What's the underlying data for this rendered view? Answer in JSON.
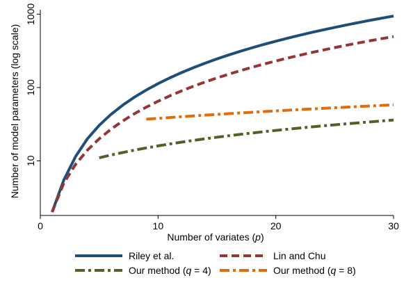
{
  "chart_data": {
    "type": "line",
    "title": "",
    "xlabel_parts": [
      "Number of variates (",
      "p",
      ")"
    ],
    "ylabel": "Number of model parameters (log scale)",
    "xlim": [
      0,
      30
    ],
    "ylim": [
      1.8,
      1150
    ],
    "y_scale": "log",
    "x_ticks": [
      0,
      10,
      20,
      30
    ],
    "y_ticks": [
      10,
      100,
      1000
    ],
    "grid": false,
    "legend_position": "bottom",
    "series": [
      {
        "name": "Riley et al.",
        "color": "#1f4e79",
        "dash": "solid",
        "x": [
          1,
          2,
          3,
          4,
          5,
          6,
          7,
          8,
          9,
          10,
          11,
          12,
          13,
          14,
          15,
          16,
          17,
          18,
          19,
          20,
          21,
          22,
          23,
          24,
          25,
          26,
          27,
          28,
          29,
          30
        ],
        "y": [
          2,
          5.5,
          11.5,
          20,
          30.5,
          43,
          57.5,
          74,
          92.5,
          113,
          135.5,
          160,
          186.5,
          215,
          245.5,
          278,
          312.5,
          349,
          387.5,
          428,
          470.5,
          515,
          561.5,
          610,
          660.5,
          713,
          767.5,
          824,
          882.5,
          943
        ]
      },
      {
        "name": "Lin and Chu",
        "color": "#943634",
        "dash": "dashed",
        "x": [
          1,
          2,
          3,
          4,
          5,
          6,
          7,
          8,
          9,
          10,
          11,
          12,
          13,
          14,
          15,
          16,
          17,
          18,
          19,
          20,
          21,
          22,
          23,
          24,
          25,
          26,
          27,
          28,
          29,
          30
        ],
        "y": [
          2,
          5,
          9,
          14,
          20,
          27,
          35,
          44,
          54,
          65,
          77,
          90,
          104,
          119,
          135,
          152,
          170,
          189,
          209,
          230,
          252,
          275,
          299,
          324,
          350,
          377,
          405,
          434,
          464,
          495
        ]
      },
      {
        "name_parts": [
          "Our method (",
          "q",
          " = 4)"
        ],
        "color": "#4f6228",
        "dash": "dashdot",
        "x": [
          5,
          6,
          7,
          8,
          9,
          10,
          11,
          12,
          13,
          14,
          15,
          16,
          17,
          18,
          19,
          20,
          21,
          22,
          23,
          24,
          25,
          26,
          27,
          28,
          29,
          30
        ],
        "y": [
          11,
          12,
          13,
          14,
          15,
          16,
          17,
          18,
          19,
          20,
          21,
          22,
          23,
          24,
          25,
          26,
          27,
          28,
          29,
          30,
          31,
          32,
          33,
          34,
          35,
          36
        ]
      },
      {
        "name_parts": [
          "Our method (",
          "q",
          " = 8)"
        ],
        "color": "#e36c09",
        "dash": "dashdot",
        "x": [
          9,
          10,
          11,
          12,
          13,
          14,
          15,
          16,
          17,
          18,
          19,
          20,
          21,
          22,
          23,
          24,
          25,
          26,
          27,
          28,
          29,
          30
        ],
        "y": [
          37,
          38,
          39,
          40,
          41,
          42,
          43,
          44,
          45,
          46,
          47,
          48,
          49,
          50,
          51,
          52,
          53,
          54,
          55,
          56,
          57,
          58
        ]
      }
    ]
  }
}
